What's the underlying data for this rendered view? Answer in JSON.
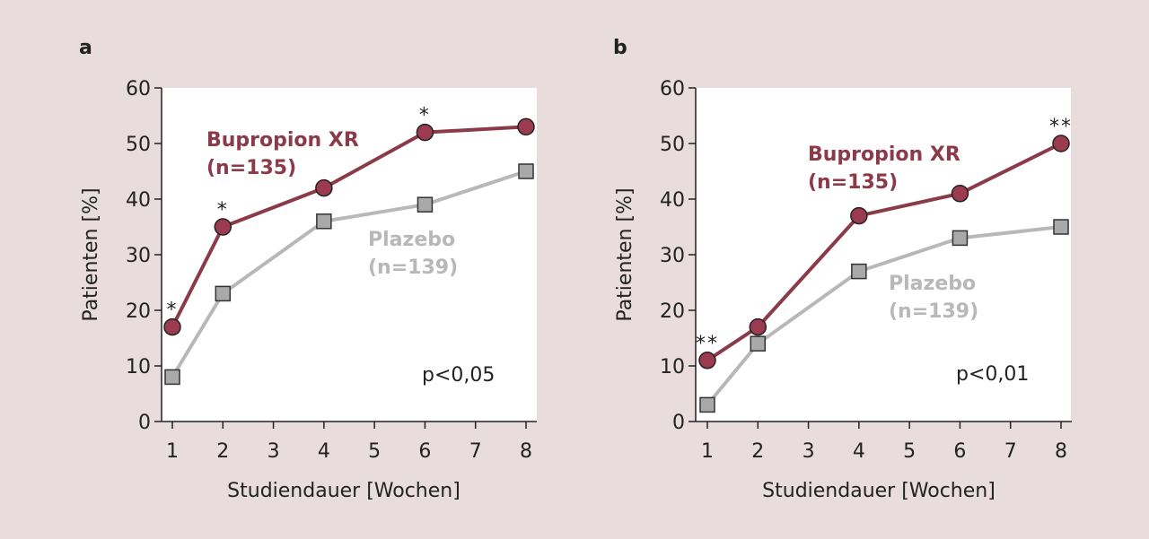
{
  "colors": {
    "background": "#e8dcdc",
    "plot_bg": "#ffffff",
    "bupropion": "#8b3a4a",
    "bupropion_fill": "#9c3b50",
    "placebo": "#b8b8b8",
    "placebo_fill": "#a9a9a9",
    "axis": "#222222"
  },
  "chart_data": [
    {
      "panel": "a",
      "type": "line",
      "xlabel": "Studiendauer [Wochen]",
      "ylabel": "Patienten [%]",
      "ylim": [
        0,
        60
      ],
      "xlim": [
        1,
        8
      ],
      "x_ticks": [
        1,
        2,
        3,
        4,
        5,
        6,
        7,
        8
      ],
      "y_ticks": [
        0,
        10,
        20,
        30,
        40,
        50,
        60
      ],
      "grid": false,
      "pvalue": "p<0,05",
      "series": [
        {
          "name": "Bupropion XR",
          "sub": "(n=135)",
          "marker": "circle",
          "x": [
            1,
            2,
            4,
            6,
            8
          ],
          "y": [
            17,
            35,
            42,
            52,
            53
          ],
          "significance": [
            "*",
            "*",
            "",
            "*",
            ""
          ]
        },
        {
          "name": "Plazebo",
          "sub": "(n=139)",
          "marker": "square",
          "x": [
            1,
            2,
            4,
            6,
            8
          ],
          "y": [
            8,
            23,
            36,
            39,
            45
          ],
          "significance": [
            "",
            "",
            "",
            "",
            ""
          ]
        }
      ]
    },
    {
      "panel": "b",
      "type": "line",
      "xlabel": "Studiendauer [Wochen]",
      "ylabel": "Patienten [%]",
      "ylim": [
        0,
        60
      ],
      "xlim": [
        1,
        8
      ],
      "x_ticks": [
        1,
        2,
        3,
        4,
        5,
        6,
        7,
        8
      ],
      "y_ticks": [
        0,
        10,
        20,
        30,
        40,
        50,
        60
      ],
      "grid": false,
      "pvalue": "p<0,01",
      "series": [
        {
          "name": "Bupropion XR",
          "sub": "(n=135)",
          "marker": "circle",
          "x": [
            1,
            2,
            4,
            6,
            8
          ],
          "y": [
            11,
            17,
            37,
            41,
            50
          ],
          "significance": [
            "**",
            "",
            "",
            "",
            "**"
          ]
        },
        {
          "name": "Plazebo",
          "sub": "(n=139)",
          "marker": "square",
          "x": [
            1,
            2,
            4,
            6,
            8
          ],
          "y": [
            3,
            14,
            27,
            33,
            35
          ],
          "significance": [
            "",
            "",
            "",
            "",
            ""
          ]
        }
      ]
    }
  ]
}
